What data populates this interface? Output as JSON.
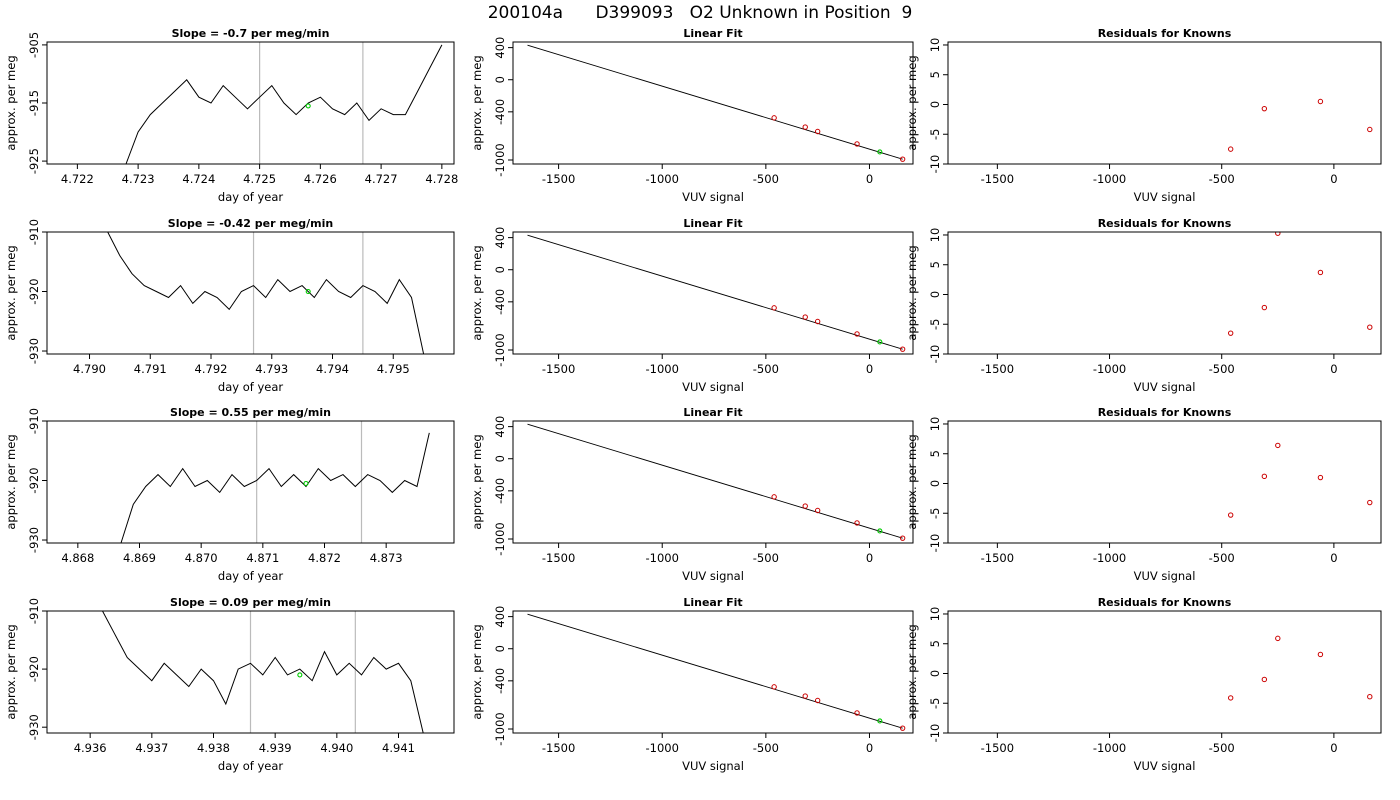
{
  "figure_title": "200104a      D399093   O2 Unknown in Position  9",
  "chart_data": [
    {
      "type": "line",
      "title": "Slope =  -0.7  per meg/min",
      "xlabel": "day of year",
      "ylabel": "approx. per meg",
      "xlim": [
        4.7215,
        4.7282
      ],
      "ylim": [
        -925.5,
        -904.5
      ],
      "x_ticks": [
        "4.722",
        "4.723",
        "4.724",
        "4.725",
        "4.726",
        "4.727",
        "4.728"
      ],
      "y_ticks": [
        "-905",
        "-915",
        "-925"
      ],
      "series": [
        {
          "x": [
            4.7228,
            4.723,
            4.7232,
            4.7234,
            4.7236,
            4.7238,
            4.724,
            4.7242,
            4.7244,
            4.7246,
            4.7248,
            4.725,
            4.7252,
            4.7254,
            4.7256,
            4.7258,
            4.726,
            4.7262,
            4.7264,
            4.7266,
            4.7268,
            4.727,
            4.7272,
            4.7274,
            4.7276,
            4.7278,
            4.728
          ],
          "y": [
            -925.5,
            -920,
            -917,
            -915,
            -913,
            -911,
            -914,
            -915,
            -912,
            -914,
            -916,
            -914,
            -912,
            -915,
            -917,
            -915,
            -914,
            -916,
            -917,
            -915,
            -918,
            -916,
            -917,
            -917,
            -913,
            -909,
            -905
          ]
        }
      ],
      "vlines": [
        4.725,
        4.7267
      ],
      "highlight": {
        "x": 4.7258,
        "y": -915.5
      }
    },
    {
      "type": "scatter",
      "title": "Linear Fit",
      "xlabel": "VUV signal",
      "ylabel": "approx. per meg",
      "xlim": [
        -1720,
        210
      ],
      "ylim": [
        -1050,
        470
      ],
      "x_ticks": [
        "-1500",
        "-1000",
        "-500",
        "0"
      ],
      "y_ticks": [
        "400",
        "0",
        "-400",
        "-1000"
      ],
      "fit_line": {
        "x": [
          -1650,
          160
        ],
        "y": [
          430,
          -990
        ]
      },
      "points": {
        "x": [
          -460,
          -310,
          -250,
          -60,
          160
        ],
        "y": [
          -475,
          -590,
          -645,
          -800,
          -990
        ]
      },
      "highlight": {
        "x": 50,
        "y": -900
      }
    },
    {
      "type": "scatter",
      "title": "Residuals for Knowns",
      "xlabel": "VUV signal",
      "ylabel": "approx. per meg",
      "xlim": [
        -1720,
        210
      ],
      "ylim": [
        -10,
        10.5
      ],
      "x_ticks": [
        "-1500",
        "-1000",
        "-500",
        "0"
      ],
      "y_ticks": [
        "10",
        "5",
        "0",
        "-5",
        "-10"
      ],
      "points": {
        "x": [
          -460,
          -310,
          -60,
          160
        ],
        "y": [
          -7.5,
          -0.7,
          0.5,
          -4.2
        ]
      }
    },
    {
      "type": "line",
      "title": "Slope =  -0.42  per meg/min",
      "xlabel": "day of year",
      "ylabel": "approx. per meg",
      "xlim": [
        4.7893,
        4.796
      ],
      "ylim": [
        -930.5,
        -910
      ],
      "x_ticks": [
        "4.790",
        "4.791",
        "4.792",
        "4.793",
        "4.794",
        "4.795"
      ],
      "y_ticks": [
        "-910",
        "-920",
        "-930"
      ],
      "series": [
        {
          "x": [
            4.7903,
            4.7905,
            4.7907,
            4.7909,
            4.7911,
            4.7913,
            4.7915,
            4.7917,
            4.7919,
            4.7921,
            4.7923,
            4.7925,
            4.7927,
            4.7929,
            4.7931,
            4.7933,
            4.7935,
            4.7937,
            4.7939,
            4.7941,
            4.7943,
            4.7945,
            4.7947,
            4.7949,
            4.7951,
            4.7953,
            4.7955
          ],
          "y": [
            -910,
            -914,
            -917,
            -919,
            -920,
            -921,
            -919,
            -922,
            -920,
            -921,
            -923,
            -920,
            -919,
            -921,
            -918,
            -920,
            -919,
            -921,
            -918,
            -920,
            -921,
            -919,
            -920,
            -922,
            -918,
            -921,
            -930.5
          ]
        }
      ],
      "vlines": [
        4.7927,
        4.7945
      ],
      "highlight": {
        "x": 4.7936,
        "y": -920
      }
    },
    {
      "type": "scatter",
      "title": "Linear Fit",
      "xlabel": "VUV signal",
      "ylabel": "approx. per meg",
      "xlim": [
        -1720,
        210
      ],
      "ylim": [
        -1050,
        470
      ],
      "x_ticks": [
        "-1500",
        "-1000",
        "-500",
        "0"
      ],
      "y_ticks": [
        "400",
        "0",
        "-400",
        "-1000"
      ],
      "fit_line": {
        "x": [
          -1650,
          160
        ],
        "y": [
          430,
          -990
        ]
      },
      "points": {
        "x": [
          -460,
          -310,
          -250,
          -60,
          160
        ],
        "y": [
          -475,
          -590,
          -645,
          -800,
          -990
        ]
      },
      "highlight": {
        "x": 50,
        "y": -900
      }
    },
    {
      "type": "scatter",
      "title": "Residuals for Knowns",
      "xlabel": "VUV signal",
      "ylabel": "approx. per meg",
      "xlim": [
        -1720,
        210
      ],
      "ylim": [
        -10,
        10.5
      ],
      "x_ticks": [
        "-1500",
        "-1000",
        "-500",
        "0"
      ],
      "y_ticks": [
        "10",
        "5",
        "0",
        "-5",
        "-10"
      ],
      "points": {
        "x": [
          -460,
          -310,
          -250,
          -60,
          160
        ],
        "y": [
          -6.5,
          -2.2,
          10.3,
          3.7,
          -5.5
        ]
      }
    },
    {
      "type": "line",
      "title": "Slope =  0.55  per meg/min",
      "xlabel": "day of year",
      "ylabel": "approx. per meg",
      "xlim": [
        4.8675,
        4.8741
      ],
      "ylim": [
        -930.5,
        -910
      ],
      "x_ticks": [
        "4.868",
        "4.869",
        "4.870",
        "4.871",
        "4.872",
        "4.873"
      ],
      "y_ticks": [
        "-910",
        "-920",
        "-930"
      ],
      "series": [
        {
          "x": [
            4.8687,
            4.8689,
            4.8691,
            4.8693,
            4.8695,
            4.8697,
            4.8699,
            4.8701,
            4.8703,
            4.8705,
            4.8707,
            4.8709,
            4.8711,
            4.8713,
            4.8715,
            4.8717,
            4.8719,
            4.8721,
            4.8723,
            4.8725,
            4.8727,
            4.8729,
            4.8731,
            4.8733,
            4.8735,
            4.8737
          ],
          "y": [
            -930.5,
            -924,
            -921,
            -919,
            -921,
            -918,
            -921,
            -920,
            -922,
            -919,
            -921,
            -920,
            -918,
            -921,
            -919,
            -921,
            -918,
            -920,
            -919,
            -921,
            -919,
            -920,
            -922,
            -920,
            -921,
            -912
          ]
        }
      ],
      "vlines": [
        4.8709,
        4.8726
      ],
      "highlight": {
        "x": 4.8717,
        "y": -920.5
      }
    },
    {
      "type": "scatter",
      "title": "Linear Fit",
      "xlabel": "VUV signal",
      "ylabel": "approx. per meg",
      "xlim": [
        -1720,
        210
      ],
      "ylim": [
        -1050,
        470
      ],
      "x_ticks": [
        "-1500",
        "-1000",
        "-500",
        "0"
      ],
      "y_ticks": [
        "400",
        "0",
        "-400",
        "-1000"
      ],
      "fit_line": {
        "x": [
          -1650,
          160
        ],
        "y": [
          430,
          -990
        ]
      },
      "points": {
        "x": [
          -460,
          -310,
          -250,
          -60,
          160
        ],
        "y": [
          -475,
          -590,
          -645,
          -800,
          -990
        ]
      },
      "highlight": {
        "x": 50,
        "y": -900
      }
    },
    {
      "type": "scatter",
      "title": "Residuals for Knowns",
      "xlabel": "VUV signal",
      "ylabel": "approx. per meg",
      "xlim": [
        -1720,
        210
      ],
      "ylim": [
        -10,
        10.5
      ],
      "x_ticks": [
        "-1500",
        "-1000",
        "-500",
        "0"
      ],
      "y_ticks": [
        "10",
        "5",
        "0",
        "-5",
        "-10"
      ],
      "points": {
        "x": [
          -460,
          -310,
          -250,
          -60,
          160
        ],
        "y": [
          -5.3,
          1.2,
          6.4,
          1.0,
          -3.2
        ]
      }
    },
    {
      "type": "line",
      "title": "Slope =  0.09  per meg/min",
      "xlabel": "day of year",
      "ylabel": "approx. per meg",
      "xlim": [
        4.9353,
        4.9419
      ],
      "ylim": [
        -931,
        -910
      ],
      "x_ticks": [
        "4.936",
        "4.937",
        "4.938",
        "4.939",
        "4.940",
        "4.941"
      ],
      "y_ticks": [
        "-910",
        "-920",
        "-930"
      ],
      "series": [
        {
          "x": [
            4.9362,
            4.9364,
            4.9366,
            4.9368,
            4.937,
            4.9372,
            4.9374,
            4.9376,
            4.9378,
            4.938,
            4.9382,
            4.9384,
            4.9386,
            4.9388,
            4.939,
            4.9392,
            4.9394,
            4.9396,
            4.9398,
            4.94,
            4.9402,
            4.9404,
            4.9406,
            4.9408,
            4.941,
            4.9412,
            4.9414
          ],
          "y": [
            -910,
            -914,
            -918,
            -920,
            -922,
            -919,
            -921,
            -923,
            -920,
            -922,
            -926,
            -920,
            -919,
            -921,
            -918,
            -921,
            -920,
            -922,
            -917,
            -921,
            -919,
            -921,
            -918,
            -920,
            -919,
            -922,
            -931
          ]
        }
      ],
      "vlines": [
        4.9386,
        4.9403
      ],
      "highlight": {
        "x": 4.9394,
        "y": -921
      }
    },
    {
      "type": "scatter",
      "title": "Linear Fit",
      "xlabel": "VUV signal",
      "ylabel": "approx. per meg",
      "xlim": [
        -1720,
        210
      ],
      "ylim": [
        -1050,
        470
      ],
      "x_ticks": [
        "-1500",
        "-1000",
        "-500",
        "0"
      ],
      "y_ticks": [
        "400",
        "0",
        "-400",
        "-1000"
      ],
      "fit_line": {
        "x": [
          -1650,
          160
        ],
        "y": [
          430,
          -990
        ]
      },
      "points": {
        "x": [
          -460,
          -310,
          -250,
          -60,
          160
        ],
        "y": [
          -475,
          -590,
          -645,
          -800,
          -990
        ]
      },
      "highlight": {
        "x": 50,
        "y": -900
      }
    },
    {
      "type": "scatter",
      "title": "Residuals for Knowns",
      "xlabel": "VUV signal",
      "ylabel": "approx. per meg",
      "xlim": [
        -1720,
        210
      ],
      "ylim": [
        -10,
        10.5
      ],
      "x_ticks": [
        "-1500",
        "-1000",
        "-500",
        "0"
      ],
      "y_ticks": [
        "10",
        "5",
        "0",
        "-5",
        "-10"
      ],
      "points": {
        "x": [
          -460,
          -310,
          -250,
          -60,
          160
        ],
        "y": [
          -4.1,
          -1.0,
          5.9,
          3.2,
          -3.9
        ]
      }
    }
  ],
  "colors": {
    "line": "#000000",
    "fit_line": "#000000",
    "known_points": "#cc0000",
    "unknown_point": "#00cc00",
    "vertical_markers": "#bbbbbb"
  }
}
